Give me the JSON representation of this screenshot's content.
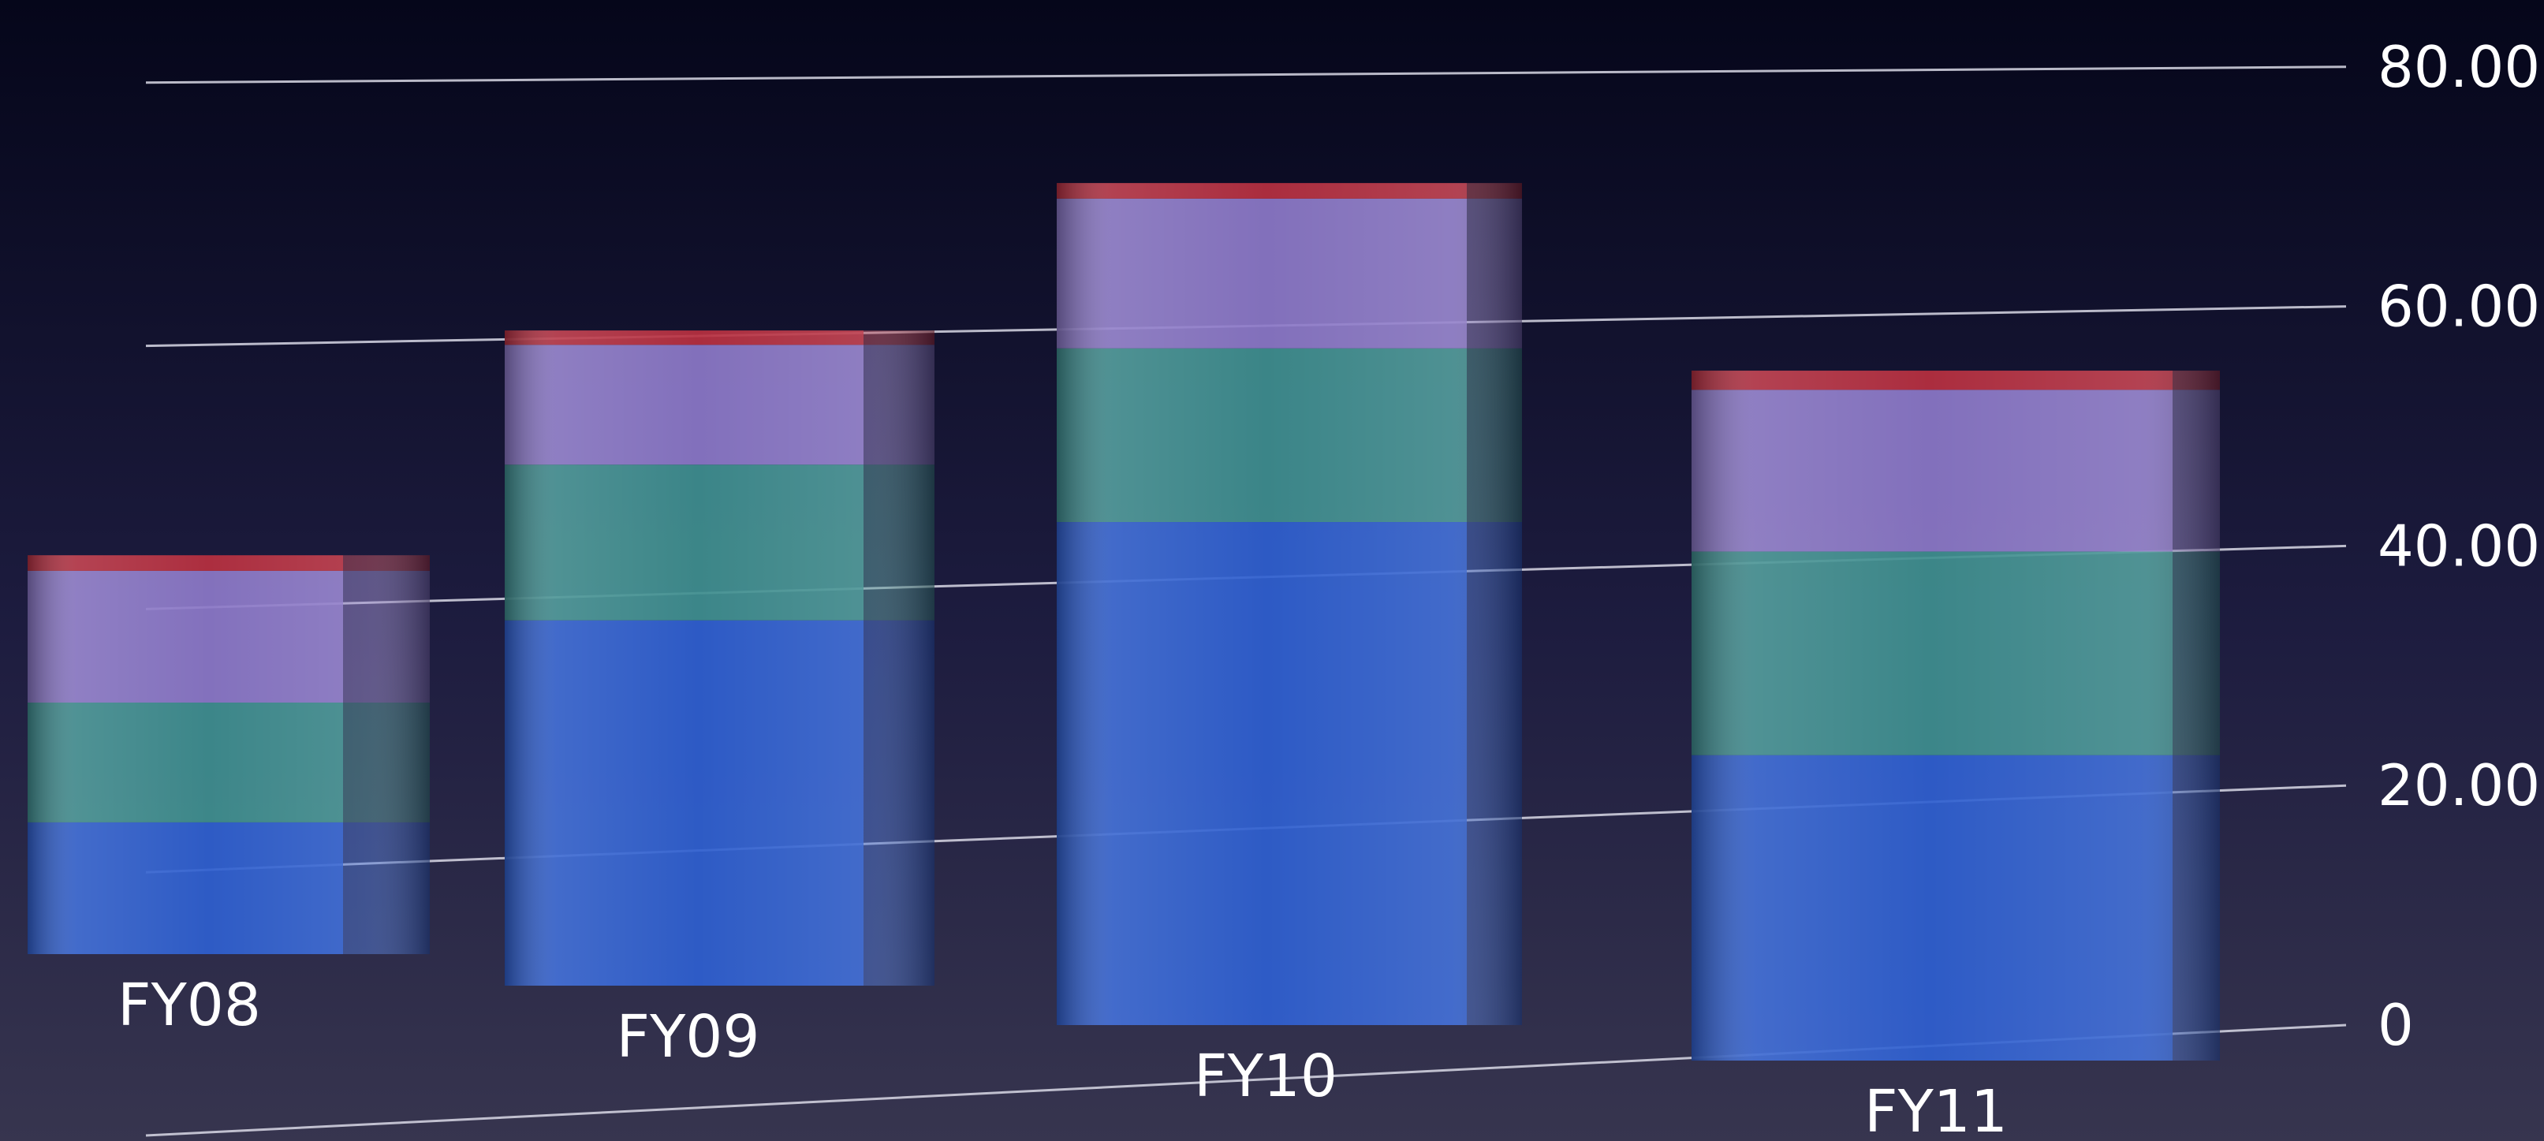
{
  "chart_data": {
    "type": "bar",
    "stacked": true,
    "style": "3d",
    "categories": [
      "FY08",
      "FY09",
      "FY10",
      "FY11"
    ],
    "series": [
      {
        "values": [
          11.0,
          30.5,
          42.0,
          25.5
        ],
        "color": "#2f5fd0"
      },
      {
        "values": [
          10.0,
          13.0,
          14.5,
          17.0
        ],
        "color": "#3f8f8f"
      },
      {
        "values": [
          11.0,
          10.0,
          12.5,
          13.5
        ],
        "color": "#8c78c8"
      },
      {
        "values": [
          1.3,
          1.2,
          1.3,
          1.6
        ],
        "color": "#b83040"
      }
    ],
    "ylim": [
      0,
      80
    ],
    "ytick_labels": [
      "0",
      "20.00",
      "40.00",
      "60.00",
      "80.00"
    ],
    "grid": true,
    "legend": "none"
  }
}
